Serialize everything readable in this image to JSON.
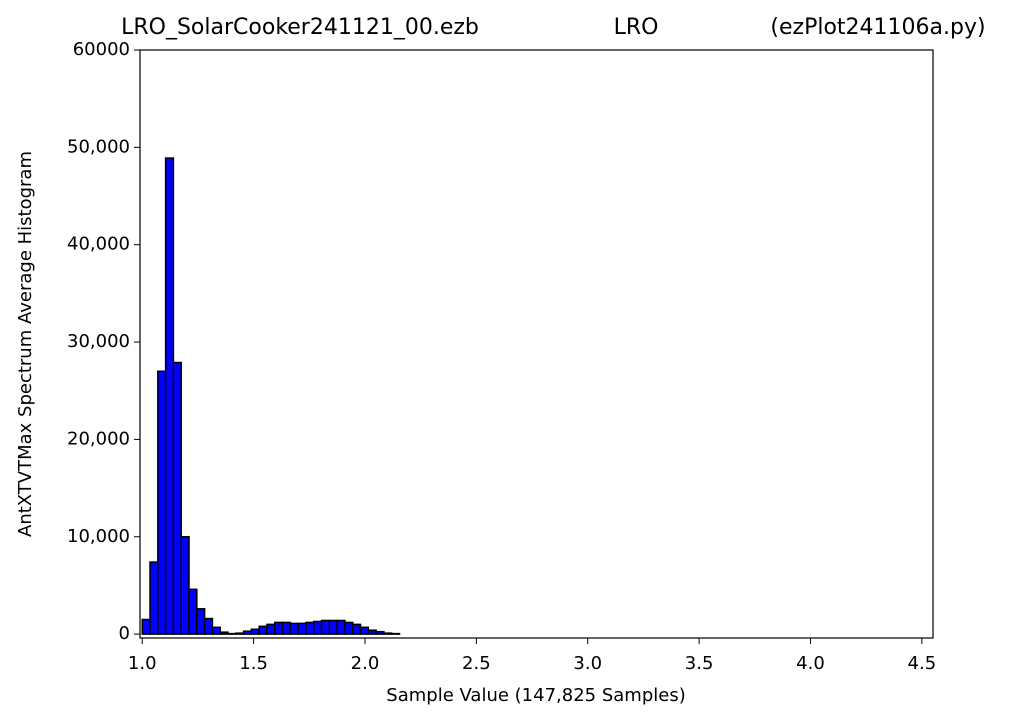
{
  "chart_data": {
    "type": "histogram",
    "titles": [
      "LRO_SolarCooker241121_00.ezb",
      "LRO",
      "(ezPlot241106a.py)"
    ],
    "xlabel": "Sample Value (147,825 Samples)",
    "ylabel": "AntXTVTMax Spectrum Average Histogram",
    "color": "#0000ff",
    "edgecolor": "#000000",
    "bins": [
      1.0,
      1.035,
      1.07,
      1.105,
      1.14,
      1.175,
      1.21,
      1.245,
      1.28,
      1.315,
      1.35,
      1.385,
      1.42,
      1.455,
      1.49,
      1.525,
      1.56,
      1.595,
      1.63,
      1.665,
      1.7,
      1.735,
      1.77,
      1.805,
      1.84,
      1.875,
      1.91,
      1.945,
      1.98,
      2.015,
      2.05,
      2.085,
      2.12,
      2.155,
      2.19,
      2.225,
      2.26,
      2.295,
      2.33,
      2.365,
      2.4,
      2.435,
      2.47,
      2.505,
      2.54,
      2.575,
      2.61,
      2.645,
      2.68,
      2.715,
      2.75,
      2.785,
      2.82,
      2.855,
      2.89,
      2.925,
      2.96,
      2.995,
      3.03,
      3.065,
      3.1,
      3.135,
      3.17,
      3.205,
      3.24,
      3.275,
      3.31,
      3.345,
      3.38,
      3.415,
      3.45,
      3.485,
      3.52,
      3.555,
      3.59,
      3.625,
      3.66,
      3.695,
      3.73,
      3.765,
      3.8,
      3.835,
      3.87,
      3.905,
      3.94,
      3.975,
      4.01,
      4.045,
      4.08,
      4.115,
      4.15,
      4.185,
      4.22,
      4.255,
      4.29,
      4.325,
      4.36,
      4.395,
      4.43,
      4.465,
      4.5
    ],
    "values": [
      1500,
      7400,
      27000,
      48900,
      27900,
      10000,
      4600,
      2600,
      1600,
      700,
      200,
      50,
      100,
      300,
      500,
      800,
      1000,
      1200,
      1200,
      1100,
      1100,
      1200,
      1300,
      1400,
      1400,
      1400,
      1200,
      1000,
      700,
      400,
      250,
      100,
      50,
      0,
      0,
      0,
      0,
      0,
      0,
      0,
      0,
      0,
      0,
      0,
      0,
      0,
      0,
      0,
      0,
      0,
      0,
      0,
      0,
      0,
      0,
      0,
      0,
      0,
      0,
      0,
      0,
      0,
      0,
      0,
      0,
      0,
      0,
      0,
      0,
      0,
      0,
      0,
      0,
      0,
      0,
      0,
      0,
      0,
      0,
      0,
      0,
      0,
      0,
      0,
      0,
      0,
      0,
      0,
      0,
      0,
      0,
      0,
      0,
      0,
      0,
      0,
      0,
      0,
      0,
      0
    ],
    "xlim": [
      0.99,
      4.55
    ],
    "xticks": [
      {
        "value": 1,
        "label": "1.0"
      },
      1.5,
      {
        "value": 2,
        "label": "2.0"
      },
      2.5,
      {
        "value": 3,
        "label": "3.0"
      },
      3.5,
      {
        "value": 4,
        "label": "4.0"
      },
      4.5
    ],
    "ylim": [
      -400,
      60000
    ],
    "yticks": [
      0,
      {
        "value": 10000,
        "label": "10,000"
      },
      {
        "value": 20000,
        "label": "20,000"
      },
      {
        "value": 30000,
        "label": "30,000"
      },
      {
        "value": 40000,
        "label": "40,000"
      },
      {
        "value": 50000,
        "label": "50,000"
      },
      60000
    ],
    "grid": false
  }
}
